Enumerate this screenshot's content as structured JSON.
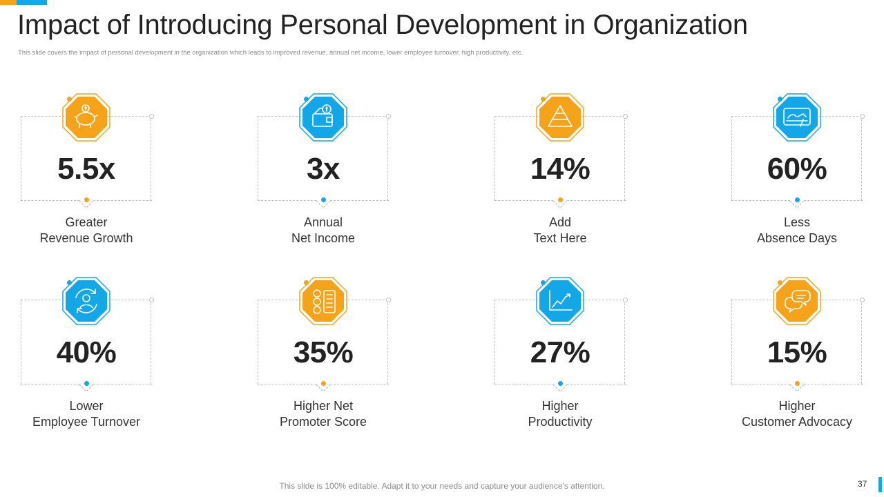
{
  "slide": {
    "title": "Impact of Introducing Personal Development in Organization",
    "subtitle": "This slide covers the impact of personal development in the organization which leads to improved revenue, annual net income, lower employee turnover, high productivity, etc.",
    "footer_note": "This slide is 100% editable. Adapt it to your needs and capture your audience's attention.",
    "page_number": "37"
  },
  "colors": {
    "orange": "#f5a31a",
    "blue": "#13a7e8"
  },
  "metrics": [
    {
      "value": "5.5x",
      "label_line1": "Greater",
      "label_line2": "Revenue Growth",
      "icon": "piggy-bank-icon",
      "color": "orange"
    },
    {
      "value": "3x",
      "label_line1": "Annual",
      "label_line2": "Net Income",
      "icon": "wallet-money-icon",
      "color": "blue"
    },
    {
      "value": "14%",
      "label_line1": "Add",
      "label_line2": "Text Here",
      "icon": "pyramid-icon",
      "color": "orange"
    },
    {
      "value": "60%",
      "label_line1": "Less",
      "label_line2": "Absence Days",
      "icon": "bed-icon",
      "color": "blue"
    },
    {
      "value": "40%",
      "label_line1": "Lower",
      "label_line2": "Employee Turnover",
      "icon": "employee-cycle-icon",
      "color": "blue"
    },
    {
      "value": "35%",
      "label_line1": "Higher Net",
      "label_line2": "Promoter Score",
      "icon": "feedback-faces-icon",
      "color": "orange"
    },
    {
      "value": "27%",
      "label_line1": "Higher",
      "label_line2": "Productivity",
      "icon": "growth-chart-icon",
      "color": "blue"
    },
    {
      "value": "15%",
      "label_line1": "Higher",
      "label_line2": "Customer Advocacy",
      "icon": "chat-bubbles-icon",
      "color": "orange"
    }
  ]
}
